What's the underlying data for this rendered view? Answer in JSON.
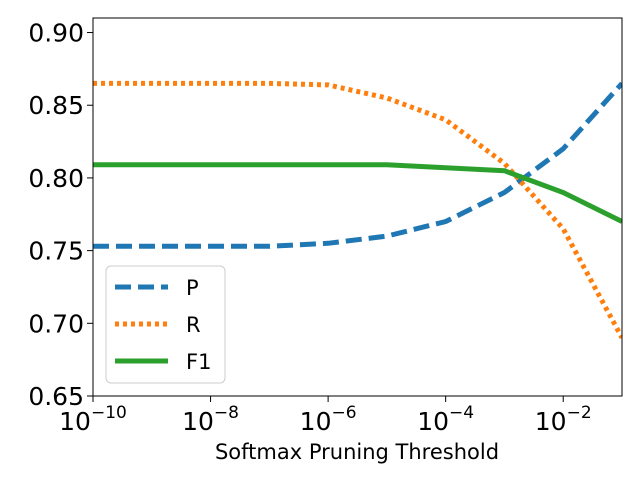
{
  "chart_data": {
    "type": "line",
    "title": "",
    "xlabel": "Softmax Pruning Threshold",
    "ylabel": "",
    "x_scale": "log",
    "xlim": [
      1e-10,
      0.1
    ],
    "ylim": [
      0.65,
      0.91
    ],
    "x_ticks": [
      {
        "value": 1e-10,
        "base": "10",
        "exp": "−10"
      },
      {
        "value": 1e-08,
        "base": "10",
        "exp": "−8"
      },
      {
        "value": 1e-06,
        "base": "10",
        "exp": "−6"
      },
      {
        "value": 0.0001,
        "base": "10",
        "exp": "−4"
      },
      {
        "value": 0.01,
        "base": "10",
        "exp": "−2"
      }
    ],
    "y_ticks": [
      {
        "value": 0.65,
        "label": "0.65"
      },
      {
        "value": 0.7,
        "label": "0.70"
      },
      {
        "value": 0.75,
        "label": "0.75"
      },
      {
        "value": 0.8,
        "label": "0.80"
      },
      {
        "value": 0.85,
        "label": "0.85"
      },
      {
        "value": 0.9,
        "label": "0.90"
      }
    ],
    "x": [
      1e-10,
      1e-09,
      1e-08,
      1e-07,
      1e-06,
      1e-05,
      0.0001,
      0.001,
      0.01,
      0.1
    ],
    "series": [
      {
        "name": "P",
        "color": "#1f77b4",
        "style": "dashed",
        "values": [
          0.753,
          0.753,
          0.753,
          0.753,
          0.755,
          0.76,
          0.77,
          0.79,
          0.82,
          0.865
        ]
      },
      {
        "name": "R",
        "color": "#ff7f0e",
        "style": "dotted",
        "values": [
          0.865,
          0.865,
          0.865,
          0.865,
          0.864,
          0.855,
          0.84,
          0.81,
          0.765,
          0.69
        ]
      },
      {
        "name": "F1",
        "color": "#2ca02c",
        "style": "solid",
        "values": [
          0.809,
          0.809,
          0.809,
          0.809,
          0.809,
          0.809,
          0.807,
          0.805,
          0.79,
          0.77
        ]
      }
    ],
    "grid": false,
    "legend_position": "lower-left"
  }
}
